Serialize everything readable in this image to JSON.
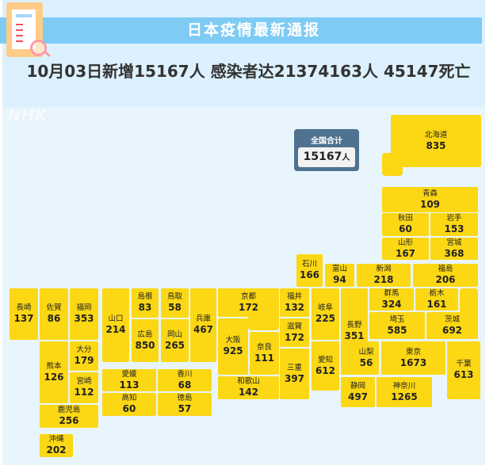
{
  "header": {
    "title": "日本疫情最新通报",
    "headline": "10月03日新增15167人 感染者达21374163人 45147死亡",
    "icon": "report-magnifier-icon",
    "watermark": "NHK"
  },
  "total": {
    "label": "全国合计",
    "value": "15167",
    "unit": "人"
  },
  "colors": {
    "tile": "#fcd714",
    "bar": "#7ecbf4",
    "total_box": "#4e7290"
  },
  "prefectures": [
    {
      "name": "北海道",
      "value": "835"
    },
    {
      "name": "青森",
      "value": "109"
    },
    {
      "name": "秋田",
      "value": "60"
    },
    {
      "name": "岩手",
      "value": "153"
    },
    {
      "name": "山形",
      "value": "167"
    },
    {
      "name": "宮城",
      "value": "368"
    },
    {
      "name": "石川",
      "value": "166"
    },
    {
      "name": "富山",
      "value": "94"
    },
    {
      "name": "新潟",
      "value": "218"
    },
    {
      "name": "福島",
      "value": "206"
    },
    {
      "name": "長崎",
      "value": "137"
    },
    {
      "name": "佐賀",
      "value": "86"
    },
    {
      "name": "福岡",
      "value": "353"
    },
    {
      "name": "熊本",
      "value": "126"
    },
    {
      "name": "大分",
      "value": "179"
    },
    {
      "name": "宮崎",
      "value": "112"
    },
    {
      "name": "鹿児島",
      "value": "256"
    },
    {
      "name": "沖縄",
      "value": "202"
    },
    {
      "name": "山口",
      "value": "214"
    },
    {
      "name": "島根",
      "value": "83"
    },
    {
      "name": "鳥取",
      "value": "58"
    },
    {
      "name": "広島",
      "value": "850"
    },
    {
      "name": "岡山",
      "value": "265"
    },
    {
      "name": "兵庫",
      "value": "467"
    },
    {
      "name": "愛媛",
      "value": "113"
    },
    {
      "name": "香川",
      "value": "68"
    },
    {
      "name": "高知",
      "value": "60"
    },
    {
      "name": "徳島",
      "value": "57"
    },
    {
      "name": "京都",
      "value": "172"
    },
    {
      "name": "大阪",
      "value": "925"
    },
    {
      "name": "奈良",
      "value": "111"
    },
    {
      "name": "和歌山",
      "value": "142"
    },
    {
      "name": "福井",
      "value": "132"
    },
    {
      "name": "滋賀",
      "value": "172"
    },
    {
      "name": "三重",
      "value": "397"
    },
    {
      "name": "岐阜",
      "value": "225"
    },
    {
      "name": "愛知",
      "value": "612"
    },
    {
      "name": "長野",
      "value": "351"
    },
    {
      "name": "群馬",
      "value": "324"
    },
    {
      "name": "栃木",
      "value": "161"
    },
    {
      "name": "埼玉",
      "value": "585"
    },
    {
      "name": "茨城",
      "value": "692"
    },
    {
      "name": "山梨",
      "value": "56"
    },
    {
      "name": "東京",
      "value": "1673"
    },
    {
      "name": "千葉",
      "value": "613"
    },
    {
      "name": "静岡",
      "value": "497"
    },
    {
      "name": "神奈川",
      "value": "1265"
    }
  ]
}
